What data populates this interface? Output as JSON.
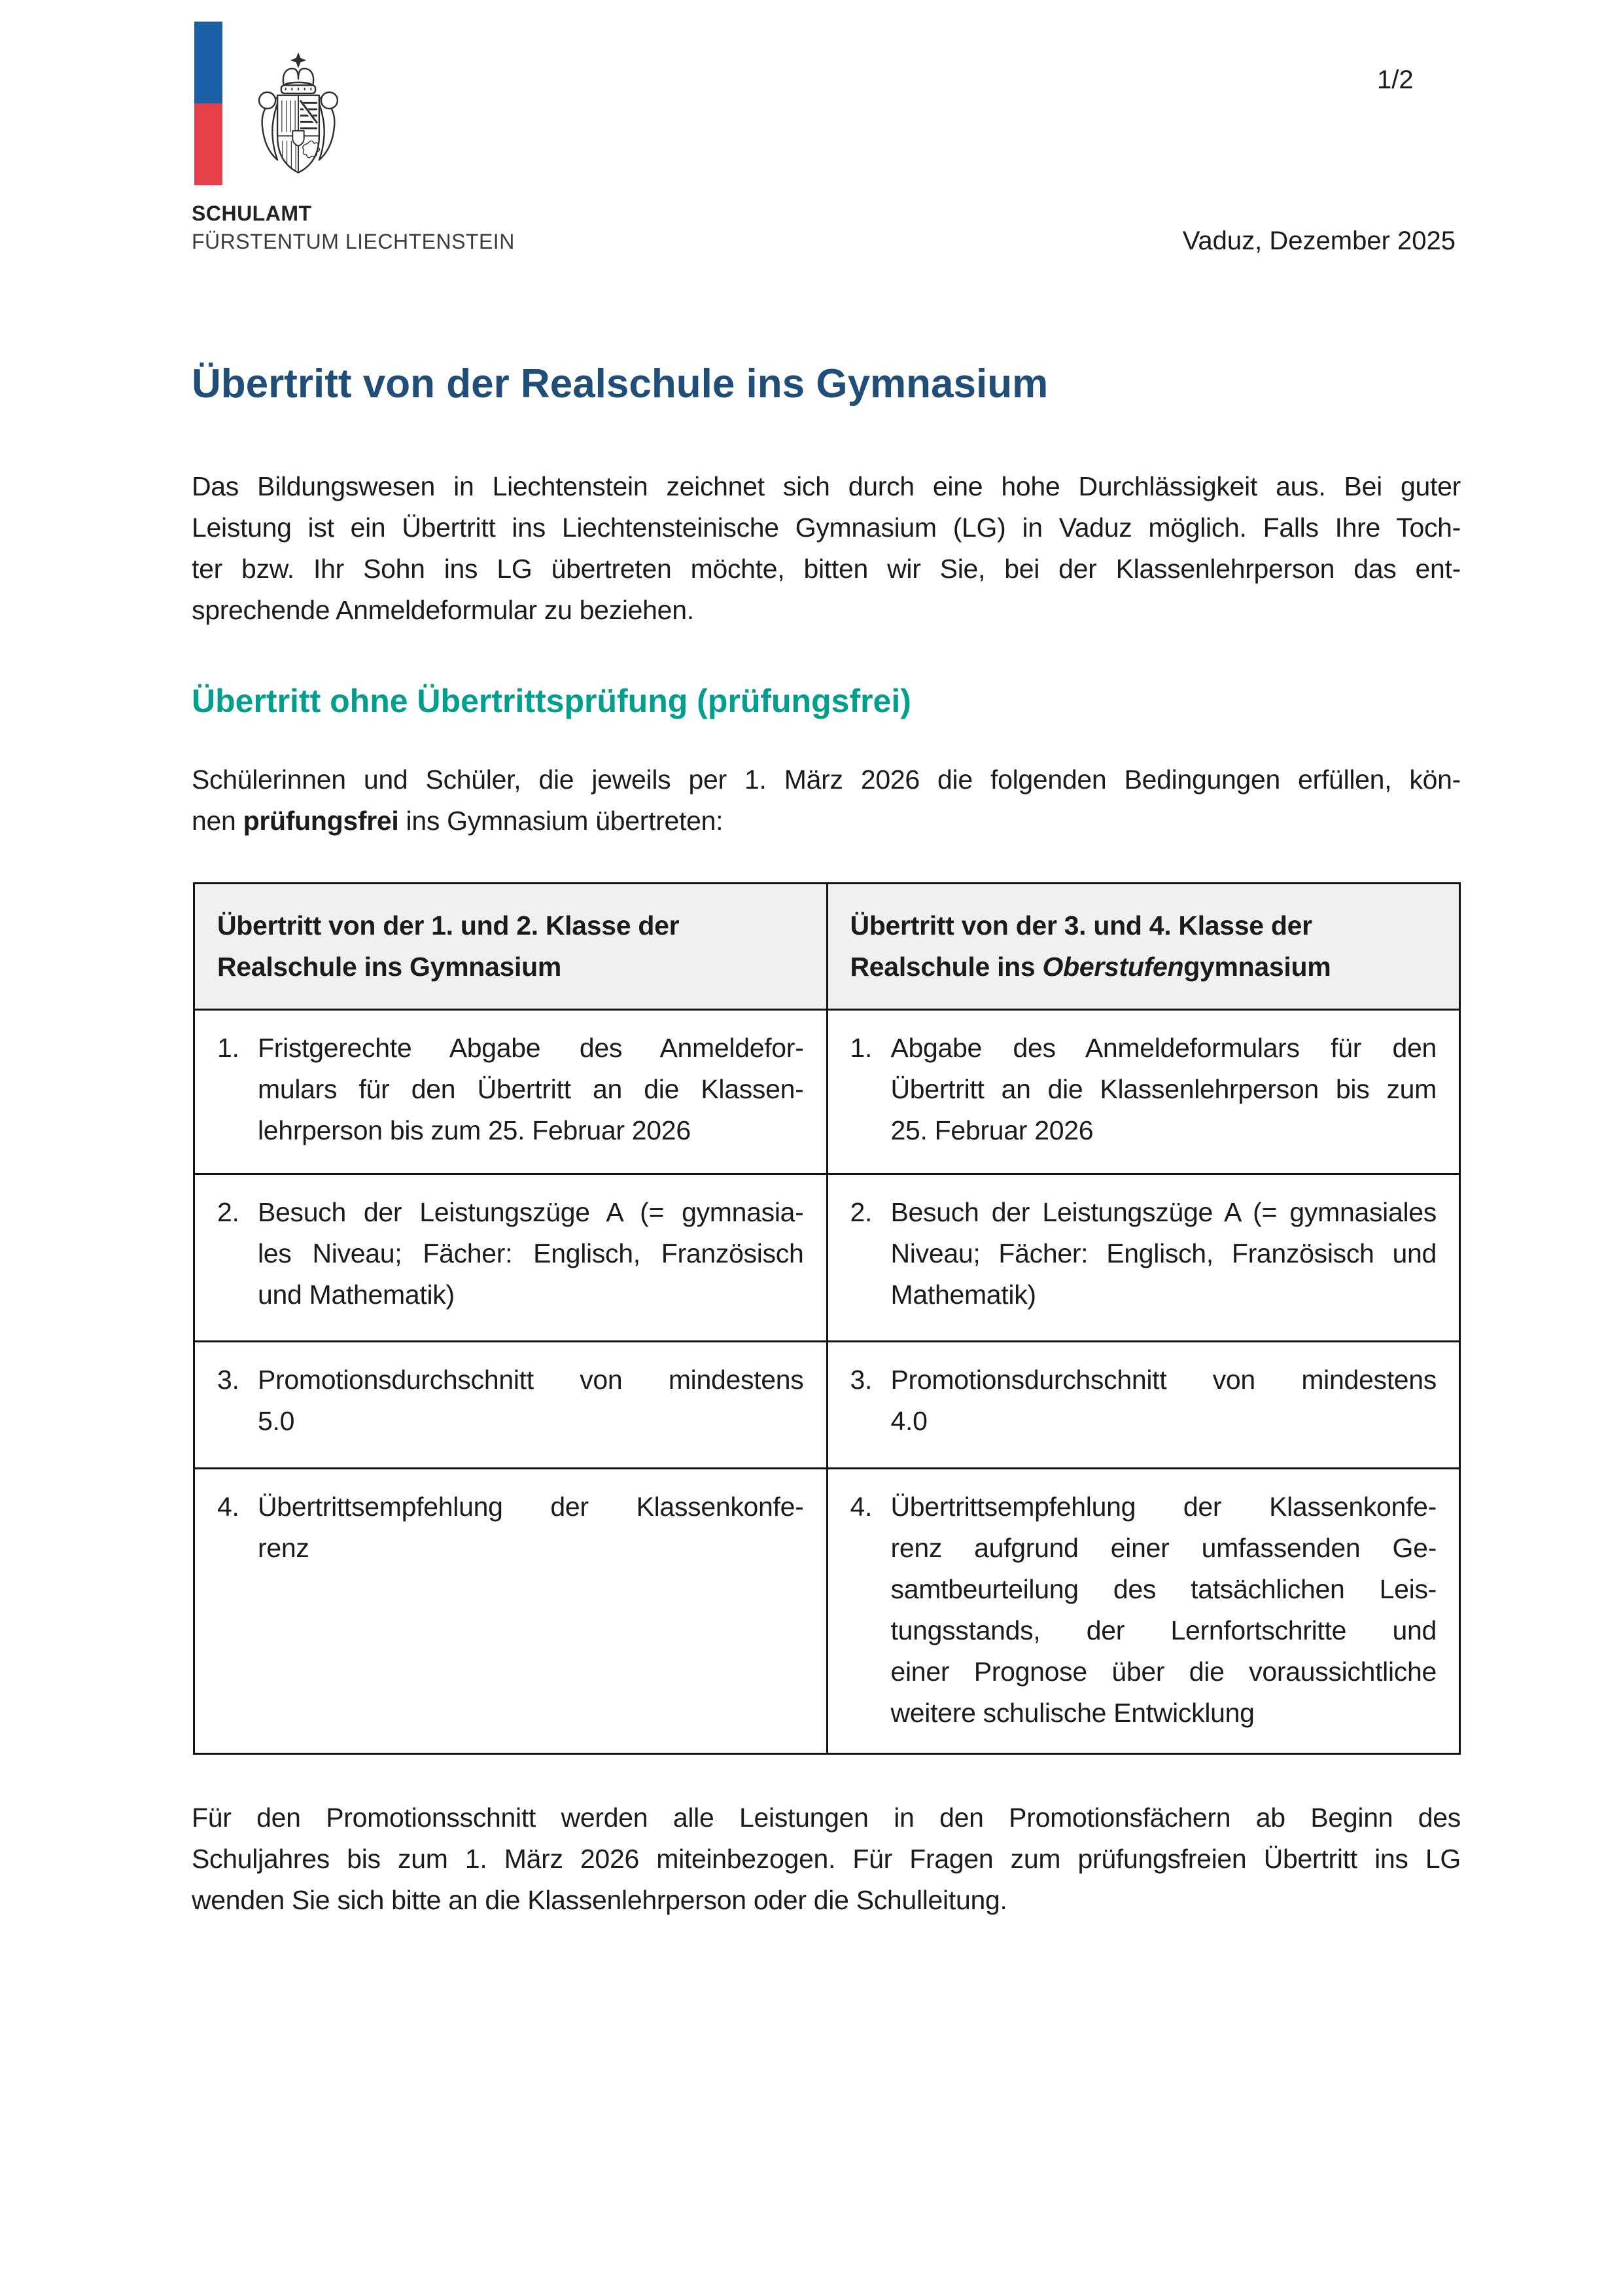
{
  "colors": {
    "title_blue": "#1F4E79",
    "section_teal": "#009E8C",
    "logo_blue": "#1B5FA6",
    "logo_red": "#E63F4A",
    "table_header_bg": "#F0F0F0"
  },
  "page": {
    "number": "1/2",
    "place_date": "Vaduz, Dezember 2025"
  },
  "header": {
    "org": "SCHULAMT",
    "org_sub": "FÜRSTENTUM LIECHTENSTEIN",
    "crest_icon": "liechtenstein-coat-of-arms-icon"
  },
  "title": "Übertritt von der Realschule ins Gymnasium",
  "intro": {
    "lines": [
      "Das Bildungswesen in Liechtenstein zeichnet sich durch eine hohe Durchlässigkeit aus. Bei guter",
      "Leistung ist ein Übertritt ins Liechtensteinische Gymnasium (LG) in Vaduz möglich. Falls Ihre Toch-",
      "ter bzw. Ihr Sohn ins LG übertreten möchte, bitten wir Sie, bei der Klassenlehrperson das ent-",
      "sprechende Anmeldeformular zu beziehen."
    ]
  },
  "section": {
    "heading": "Übertritt ohne Übertrittsprüfung (prüfungsfrei)",
    "lines": [
      "Schülerinnen und Schüler, die jeweils per 1. März 2026 die folgenden Bedingungen erfüllen, kön-",
      [
        {
          "t": "nen "
        },
        {
          "t": "prüfungsfrei",
          "b": true
        },
        {
          "t": " ins Gymnasium übertreten:"
        }
      ]
    ]
  },
  "table": {
    "header_left": {
      "lines": [
        "Übertritt von der 1. und 2. Klasse der",
        "Realschule ins Gymnasium"
      ]
    },
    "header_right": {
      "lines": [
        "Übertritt von der 3. und 4. Klasse der",
        [
          {
            "t": "Realschule ins "
          },
          {
            "t": "Oberstufen",
            "i": true
          },
          {
            "t": "gymnasium"
          }
        ]
      ]
    },
    "rows": [
      {
        "left": {
          "num": "1.",
          "lines": [
            "Fristgerechte Abgabe des Anmeldefor-",
            "mulars für den Übertritt an die Klassen-",
            "lehrperson bis zum 25. Februar 2026"
          ]
        },
        "right": {
          "num": "1.",
          "lines": [
            "Abgabe des Anmeldeformulars für den",
            "Übertritt an die Klassenlehrperson bis zum",
            "25. Februar 2026"
          ]
        }
      },
      {
        "left": {
          "num": "2.",
          "lines": [
            "Besuch der Leistungszüge A (= gymnasia-",
            "les Niveau; Fächer: Englisch, Französisch",
            "und Mathematik)"
          ]
        },
        "right": {
          "num": "2.",
          "lines": [
            "Besuch der Leistungszüge A (= gymnasiales",
            "Niveau; Fächer: Englisch, Französisch und",
            "Mathematik)"
          ]
        }
      },
      {
        "left": {
          "num": "3.",
          "lines": [
            "Promotionsdurchschnitt von mindestens",
            "5.0"
          ]
        },
        "right": {
          "num": "3.",
          "lines": [
            "Promotionsdurchschnitt von mindestens",
            "4.0"
          ]
        }
      },
      {
        "left": {
          "num": "4.",
          "lines": [
            "Übertrittsempfehlung der Klassenkonfe-",
            "renz"
          ]
        },
        "right": {
          "num": "4.",
          "lines": [
            "Übertrittsempfehlung der Klassenkonfe-",
            "renz aufgrund einer umfassenden Ge-",
            "samtbeurteilung des tatsächlichen Leis-",
            "tungsstands, der Lernfortschritte und",
            "einer Prognose über die voraussichtliche",
            "weitere schulische Entwicklung"
          ]
        }
      }
    ]
  },
  "closing": {
    "lines": [
      "Für den Promotionsschnitt werden alle Leistungen in den Promotionsfächern ab Beginn des",
      "Schuljahres bis zum 1. März 2026 miteinbezogen. Für Fragen zum prüfungsfreien Übertritt ins LG",
      "wenden Sie sich bitte an die Klassenlehrperson oder die Schulleitung."
    ]
  }
}
